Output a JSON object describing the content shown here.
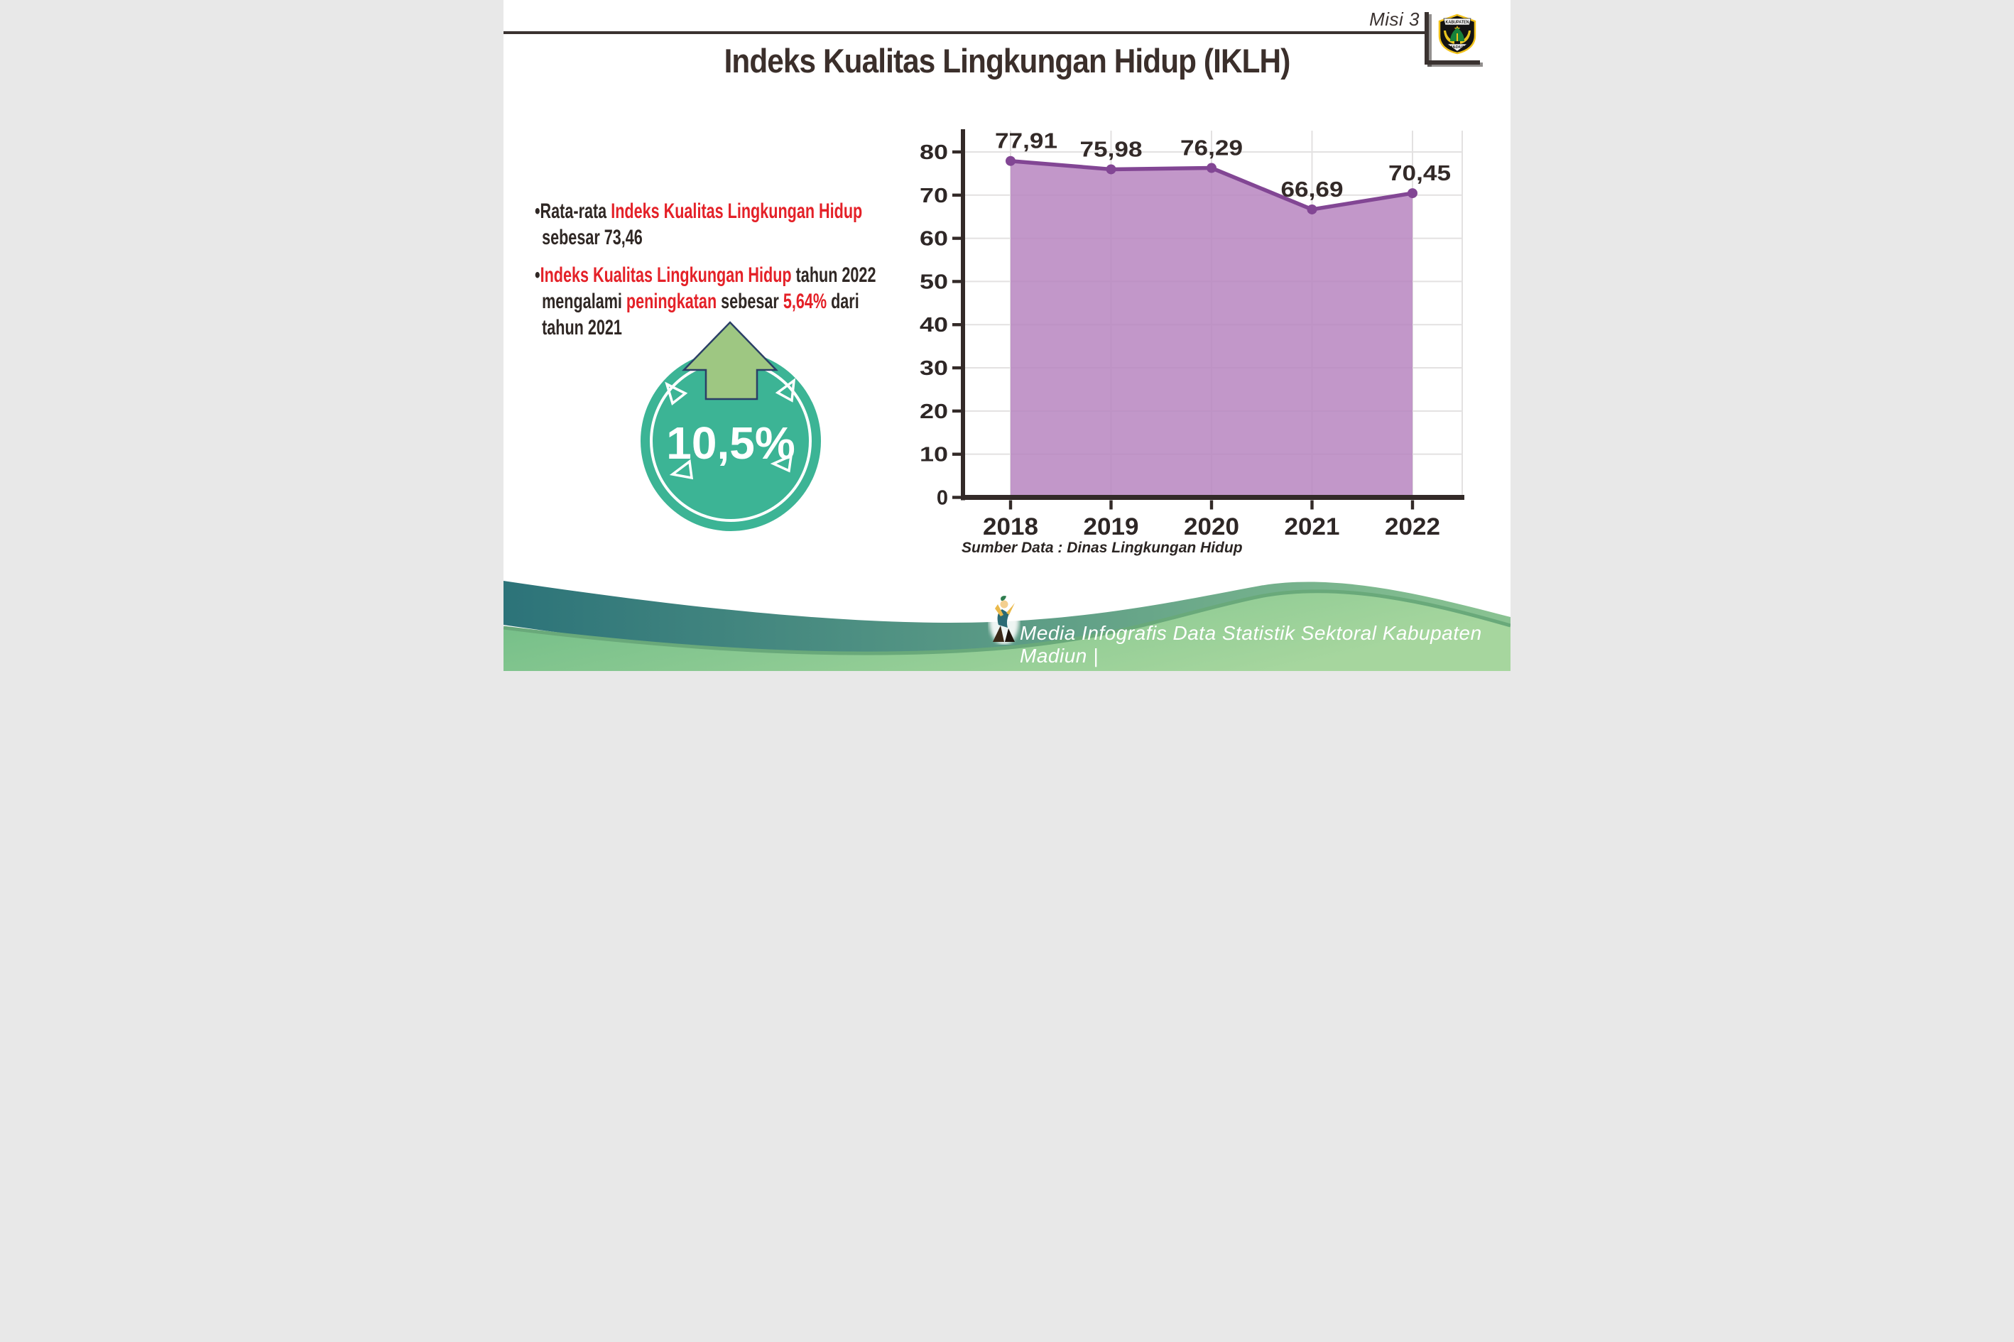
{
  "header": {
    "misi": "Misi 3",
    "title": "Indeks Kualitas Lingkungan Hidup (IKLH)",
    "logo": {
      "top": "KABUPATEN",
      "bottom": "MADIUN"
    }
  },
  "bullets": [
    {
      "lines": [
        [
          {
            "t": "•Rata-rata ",
            "c": "dark"
          },
          {
            "t": "Indeks Kualitas Lingkungan Hidup",
            "c": "red"
          }
        ],
        [
          {
            "t": "sebesar 73,46",
            "c": "dark"
          }
        ]
      ]
    },
    {
      "lines": [
        [
          {
            "t": "•",
            "c": "dark"
          },
          {
            "t": "Indeks Kualitas Lingkungan Hidup",
            "c": "red"
          },
          {
            "t": " tahun 2022",
            "c": "dark"
          }
        ],
        [
          {
            "t": "mengalami ",
            "c": "dark"
          },
          {
            "t": "peningkatan",
            "c": "red"
          },
          {
            "t": " sebesar ",
            "c": "dark"
          },
          {
            "t": "5,64%",
            "c": "red"
          },
          {
            "t": " dari",
            "c": "dark"
          }
        ],
        [
          {
            "t": "tahun 2021",
            "c": "dark"
          }
        ]
      ]
    }
  ],
  "badge": {
    "value": "10,5%",
    "direction": "up"
  },
  "chart_data": {
    "type": "area",
    "x": [
      "2018",
      "2019",
      "2020",
      "2021",
      "2022"
    ],
    "series": [
      {
        "name": "IKLH",
        "values": [
          77.91,
          75.98,
          76.29,
          66.69,
          70.45
        ]
      }
    ],
    "point_labels": [
      "77,91",
      "75,98",
      "76,29",
      "66,69",
      "70,45"
    ],
    "ylim": [
      0,
      85
    ],
    "yticks": [
      0,
      10,
      20,
      30,
      40,
      50,
      60,
      70,
      80
    ],
    "grid": true,
    "legend_position": "none",
    "xlabel": "",
    "ylabel": "",
    "line_color": "#824694",
    "fill_color": "#b785bf",
    "source": "Sumber Data : Dinas Lingkungan Hidup"
  },
  "footer": {
    "caption": "Media Infografis Data Statistik Sektoral Kabupaten Madiun |"
  },
  "colors": {
    "accent_red": "#e42128",
    "text_dark": "#332a28",
    "badge_teal": "#3cb495",
    "arrow_green": "#9ec782",
    "arrow_outline": "#2b3f66",
    "footer_teal": "#2c7379",
    "footer_green": "#7fc48d",
    "grid_gray": "#e3e1e1"
  }
}
